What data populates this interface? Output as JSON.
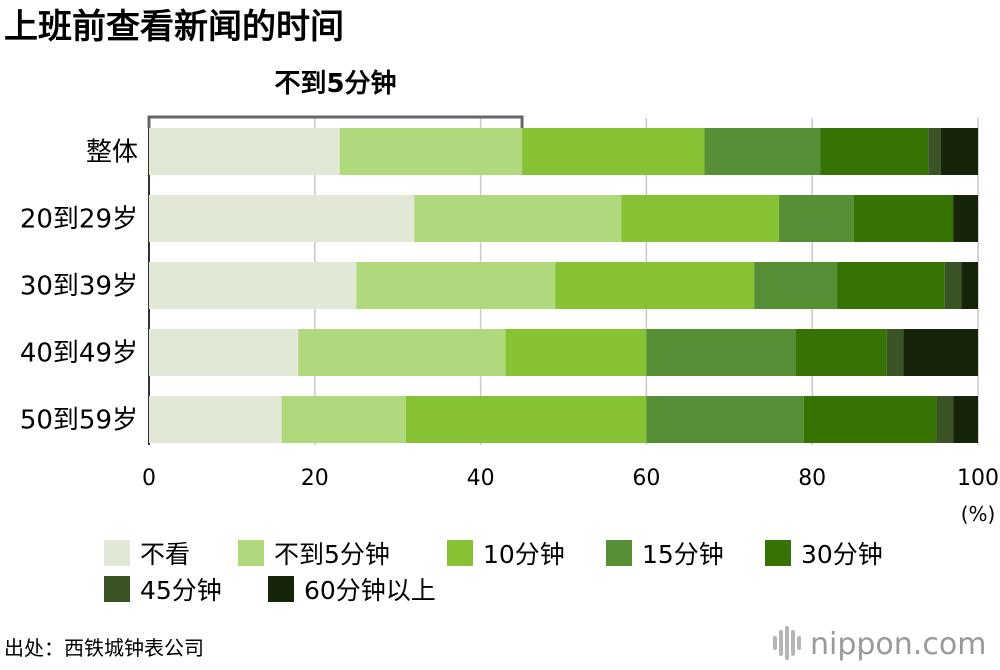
{
  "chart_data": {
    "type": "bar",
    "orientation": "horizontal",
    "stacked": true,
    "title": "上班前查看新闻的时间",
    "categories": [
      "整体",
      "20到29岁",
      "30到39岁",
      "40到49岁",
      "50到59岁"
    ],
    "series": [
      {
        "name": "不看",
        "color": "#e1e9d6",
        "values": [
          23,
          32,
          25,
          18,
          16
        ]
      },
      {
        "name": "不到5分钟",
        "color": "#b0d87c",
        "values": [
          22,
          25,
          24,
          25,
          15
        ]
      },
      {
        "name": "10分钟",
        "color": "#86c234",
        "values": [
          22,
          19,
          24,
          17,
          29
        ]
      },
      {
        "name": "15分钟",
        "color": "#568f36",
        "values": [
          14,
          9,
          10,
          18,
          19
        ]
      },
      {
        "name": "30分钟",
        "color": "#377204",
        "values": [
          13,
          12,
          13,
          11,
          16
        ]
      },
      {
        "name": "45分钟",
        "color": "#3a5426",
        "values": [
          1.5,
          0,
          2,
          2,
          2
        ]
      },
      {
        "name": "60分钟以上",
        "color": "#16250a",
        "values": [
          4.5,
          3,
          2,
          9,
          3
        ]
      }
    ],
    "xlim": [
      0,
      100
    ],
    "xticks": [
      0,
      20,
      40,
      60,
      80,
      100
    ],
    "xunit": "(%)",
    "grid": true,
    "legend_position": "bottom",
    "annotation": {
      "label": "不到5分钟",
      "from": 0,
      "to": 45
    }
  },
  "footer": {
    "source": "出处：西铁城钟表公司",
    "brand": "nippon.com"
  }
}
